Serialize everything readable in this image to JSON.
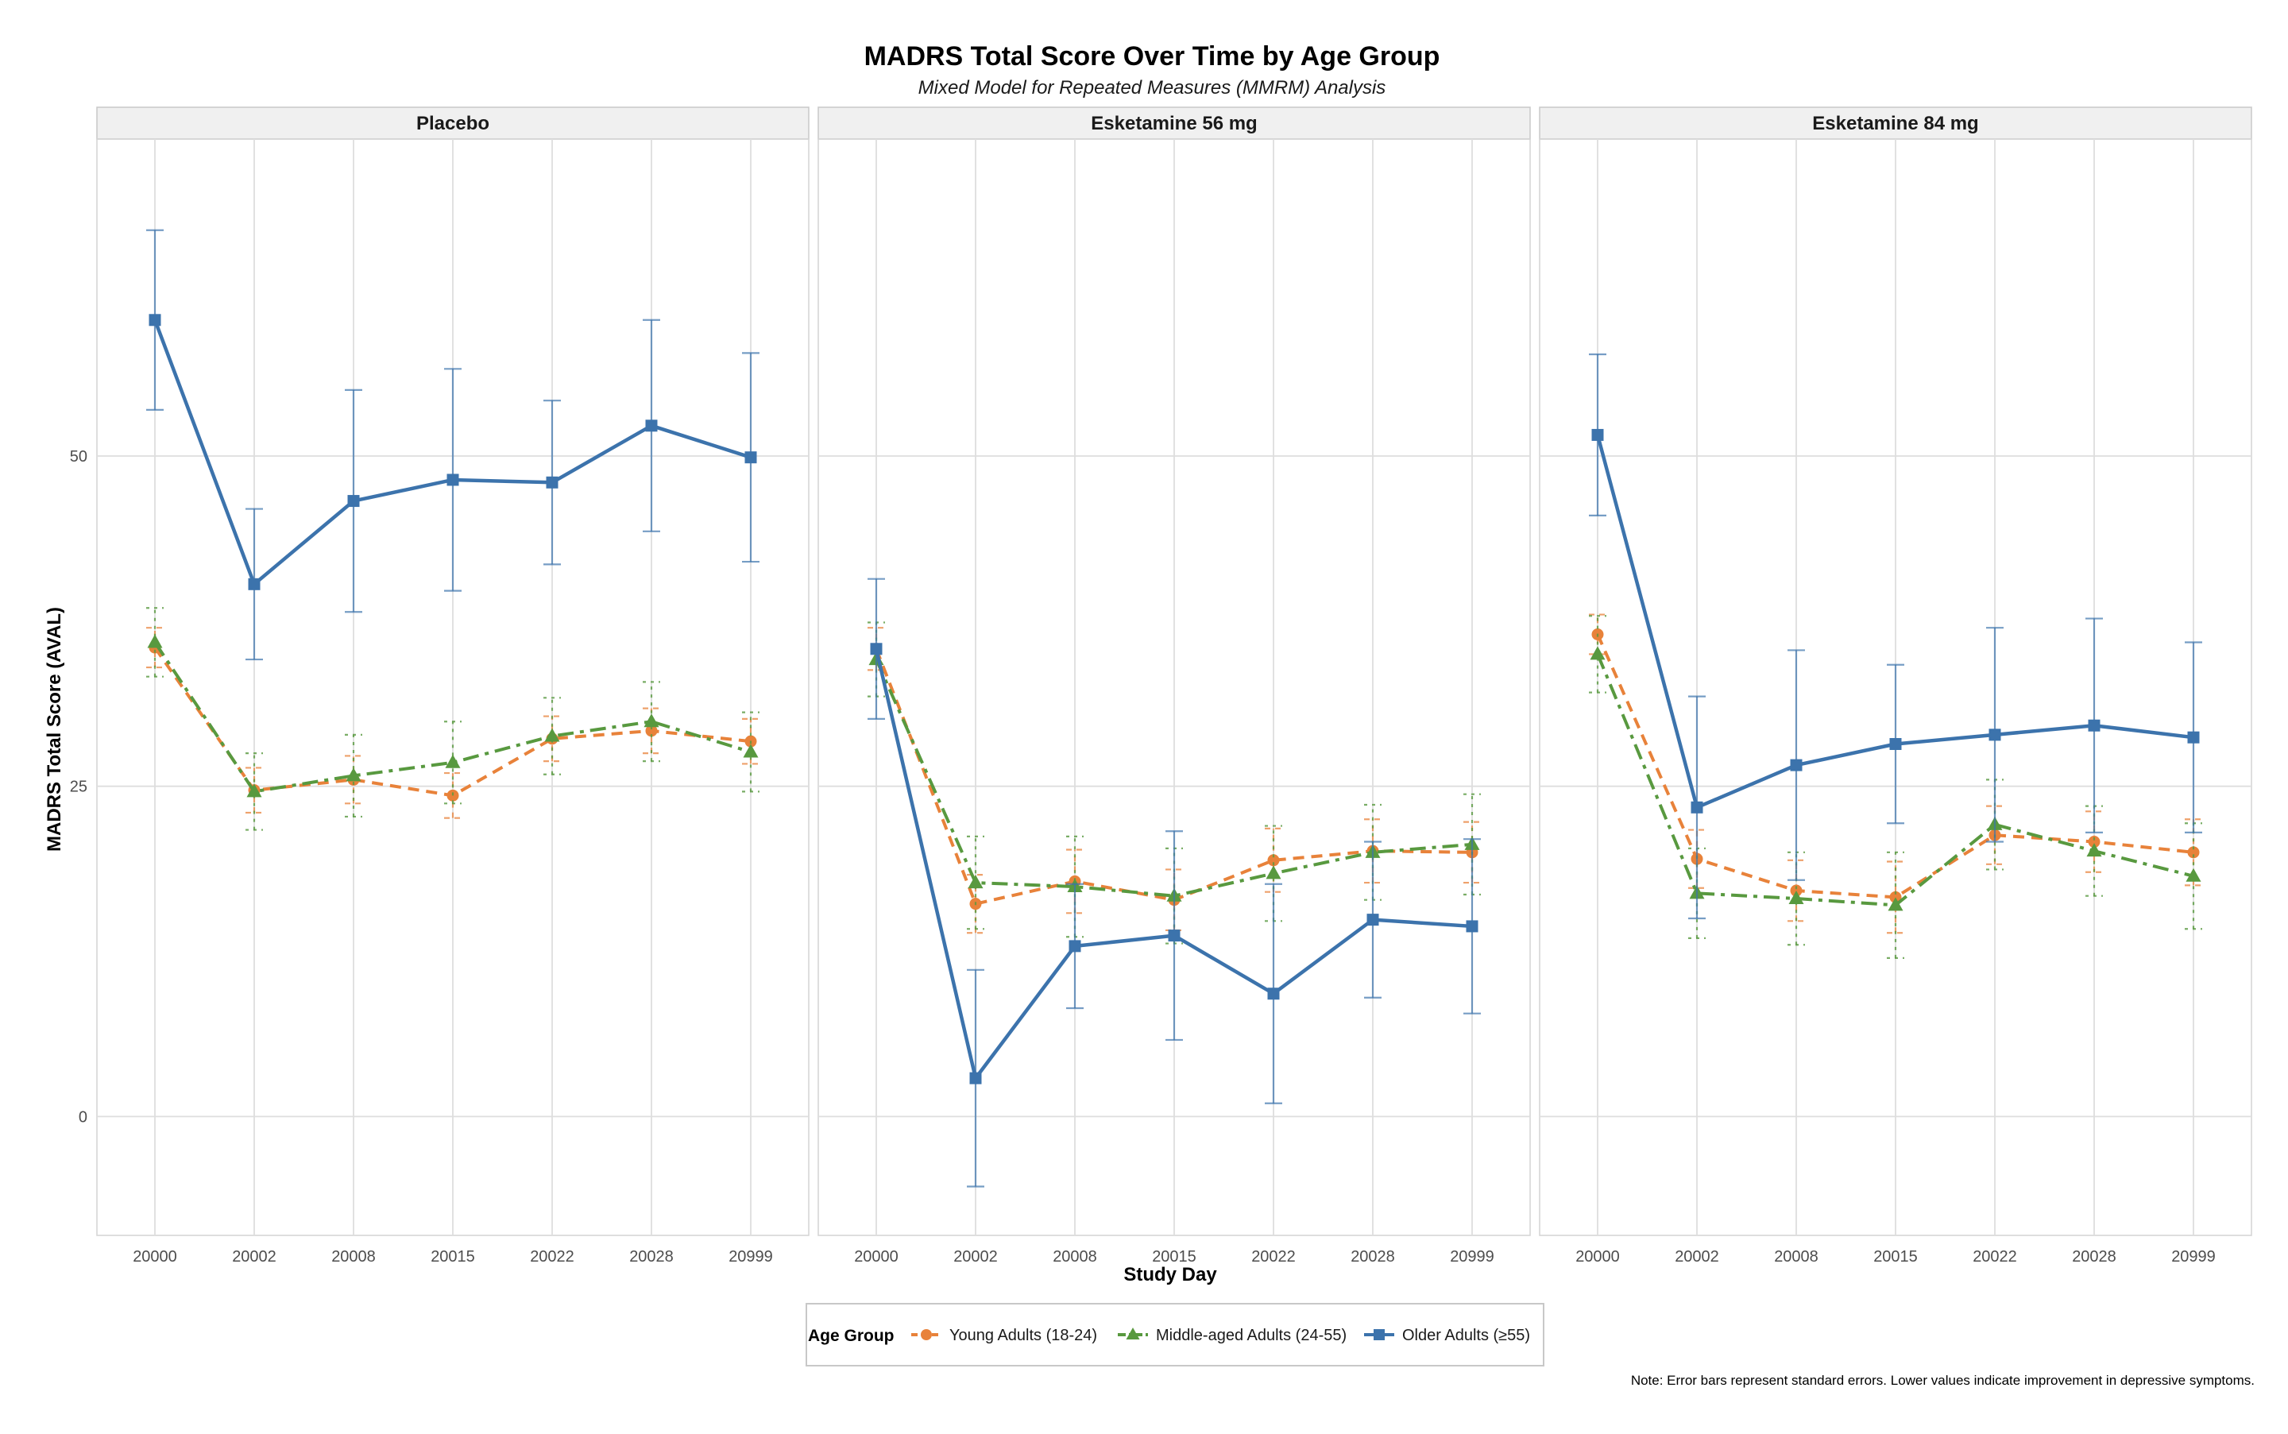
{
  "chart_data": {
    "type": "line",
    "title": "MADRS Total Score Over Time by Age Group",
    "subtitle": "Mixed Model for Repeated Measures (MMRM) Analysis",
    "xlabel": "Study Day",
    "ylabel": "MADRS Total Score (AVAL)",
    "categories": [
      "20000",
      "20002",
      "20008",
      "20015",
      "20022",
      "20028",
      "20999"
    ],
    "ylim": [
      -9,
      74
    ],
    "yticks": [
      0,
      25,
      50
    ],
    "grid": true,
    "facets": [
      {
        "label": "Placebo",
        "series": [
          {
            "name": "Young Adults (18-24)",
            "values": [
              35.5,
              24.7,
              25.5,
              24.3,
              28.6,
              29.2,
              28.4
            ],
            "errors": [
              1.5,
              1.7,
              1.8,
              1.7,
              1.7,
              1.7,
              1.7
            ]
          },
          {
            "name": "Middle-aged Adults (24-55)",
            "values": [
              35.9,
              24.6,
              25.8,
              26.8,
              28.8,
              29.9,
              27.6
            ],
            "errors": [
              2.6,
              2.9,
              3.1,
              3.1,
              2.9,
              3.0,
              3.0
            ]
          },
          {
            "name": "Older Adults (≥55)",
            "values": [
              60.3,
              40.3,
              46.6,
              48.2,
              48.0,
              52.3,
              49.9
            ],
            "errors": [
              6.8,
              5.7,
              8.4,
              8.4,
              6.2,
              8.0,
              7.9
            ]
          }
        ]
      },
      {
        "label": "Esketamine 56 mg",
        "series": [
          {
            "name": "Young Adults (18-24)",
            "values": [
              35.4,
              16.1,
              17.8,
              16.4,
              19.4,
              20.1,
              20.0
            ],
            "errors": [
              1.6,
              2.2,
              2.4,
              2.3,
              2.4,
              2.4,
              2.3
            ]
          },
          {
            "name": "Middle-aged Adults (24-55)",
            "values": [
              34.6,
              17.7,
              17.4,
              16.7,
              18.4,
              20.0,
              20.6
            ],
            "errors": [
              2.8,
              3.5,
              3.8,
              3.6,
              3.6,
              3.6,
              3.8
            ]
          },
          {
            "name": "Older Adults (≥55)",
            "values": [
              35.4,
              2.9,
              12.9,
              13.7,
              9.3,
              14.9,
              14.4
            ],
            "errors": [
              5.3,
              8.2,
              4.7,
              7.9,
              8.3,
              5.9,
              6.6
            ]
          }
        ]
      },
      {
        "label": "Esketamine 84 mg",
        "series": [
          {
            "name": "Young Adults (18-24)",
            "values": [
              36.5,
              19.5,
              17.1,
              16.6,
              21.3,
              20.8,
              20.0
            ],
            "errors": [
              1.5,
              2.2,
              2.3,
              2.7,
              2.2,
              2.3,
              2.5
            ]
          },
          {
            "name": "Middle-aged Adults (24-55)",
            "values": [
              35.0,
              16.9,
              16.5,
              16.0,
              22.1,
              20.1,
              18.2
            ],
            "errors": [
              2.9,
              3.4,
              3.5,
              4.0,
              3.4,
              3.4,
              4.0
            ]
          },
          {
            "name": "Older Adults (≥55)",
            "values": [
              51.6,
              23.4,
              26.6,
              28.2,
              28.9,
              29.6,
              28.7
            ],
            "errors": [
              6.1,
              8.4,
              8.7,
              6.0,
              8.1,
              8.1,
              7.2
            ]
          }
        ]
      }
    ],
    "legend": {
      "title": "Age Group",
      "position": "bottom",
      "items": [
        "Young Adults (18-24)",
        "Middle-aged Adults (24-55)",
        "Older Adults (≥55)"
      ]
    },
    "note": "Note: Error bars represent standard errors. Lower values indicate improvement in depressive symptoms."
  },
  "colors": {
    "young": "#e8823a",
    "middle": "#58993f",
    "older": "#3c73ac",
    "grid": "#dedede",
    "strip_fill": "#f0f0f0",
    "strip_border": "#c8c8c8",
    "panel_border": "#d4d4d4",
    "axis_text": "#4d4d4d"
  }
}
